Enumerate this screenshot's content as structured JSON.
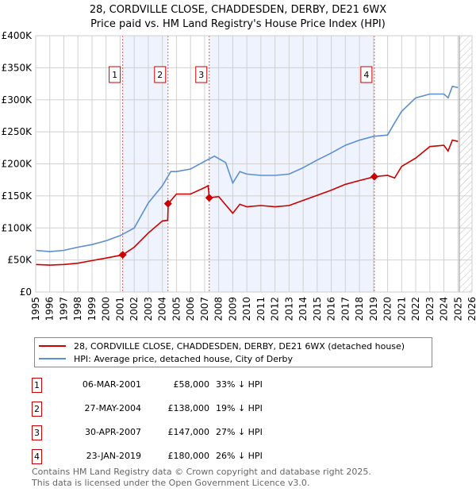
{
  "title": [
    "28, CORDVILLE CLOSE, CHADDESDEN, DERBY, DE21 6WX",
    "Price paid vs. HM Land Registry's House Price Index (HPI)"
  ],
  "chart_data": {
    "type": "line",
    "title": "28, CORDVILLE CLOSE, CHADDESDEN, DERBY, DE21 6WX - Price paid vs. HM Land Registry's House Price Index (HPI)",
    "xlim": [
      1995,
      2026
    ],
    "ylim": [
      0,
      400000
    ],
    "xticks": [
      "1995",
      "1996",
      "1997",
      "1998",
      "1999",
      "2000",
      "2001",
      "2002",
      "2003",
      "2004",
      "2005",
      "2006",
      "2007",
      "2008",
      "2009",
      "2010",
      "2011",
      "2012",
      "2013",
      "2014",
      "2015",
      "2016",
      "2017",
      "2018",
      "2019",
      "2020",
      "2021",
      "2022",
      "2023",
      "2024",
      "2025",
      "2026"
    ],
    "yticks": [
      {
        "v": 0,
        "label": "£0"
      },
      {
        "v": 50000,
        "label": "£50K"
      },
      {
        "v": 100000,
        "label": "£100K"
      },
      {
        "v": 150000,
        "label": "£150K"
      },
      {
        "v": 200000,
        "label": "£200K"
      },
      {
        "v": 250000,
        "label": "£250K"
      },
      {
        "v": 300000,
        "label": "£300K"
      },
      {
        "v": 350000,
        "label": "£350K"
      },
      {
        "v": 400000,
        "label": "£400K"
      }
    ],
    "grid": true,
    "forecast_start": 2025.1,
    "shaded_ranges": [
      [
        2001.18,
        2004.4
      ],
      [
        2007.33,
        2019.06
      ]
    ],
    "series": [
      {
        "name": "28, CORDVILLE CLOSE, CHADDESDEN, DERBY, DE21 6WX (detached house)",
        "color": "#cc0000",
        "x": [
          1995,
          1996,
          1997,
          1998,
          1999,
          2000,
          2001.18,
          2002,
          2003,
          2004,
          2004.38,
          2004.42,
          2005,
          2006,
          2007,
          2007.25,
          2007.33,
          2008,
          2009,
          2009.5,
          2010,
          2011,
          2012,
          2013,
          2014,
          2015,
          2016,
          2017,
          2018,
          2019.06,
          2020,
          2020.5,
          2021,
          2022,
          2023,
          2024,
          2024.3,
          2024.6,
          2025
        ],
        "y": [
          43000,
          42000,
          43000,
          45000,
          49000,
          53000,
          58000,
          70000,
          92000,
          111000,
          112000,
          138000,
          153000,
          153000,
          163000,
          166000,
          147000,
          149000,
          123000,
          137000,
          133000,
          135000,
          133000,
          135000,
          143000,
          151000,
          159000,
          168000,
          174000,
          180000,
          182000,
          178000,
          196000,
          209000,
          227000,
          229000,
          220000,
          237000,
          235000
        ]
      },
      {
        "name": "HPI: Average price, detached house, City of Derby",
        "color": "#5b8fd0",
        "x": [
          1995,
          1996,
          1997,
          1998,
          1999,
          2000,
          2001,
          2002,
          2003,
          2004,
          2004.6,
          2005,
          2006,
          2007,
          2007.7,
          2008.5,
          2009,
          2009.5,
          2010,
          2011,
          2012,
          2013,
          2014,
          2015,
          2016,
          2017,
          2018,
          2019,
          2020,
          2020.5,
          2021,
          2022,
          2023,
          2024,
          2024.3,
          2024.6,
          2025
        ],
        "y": [
          65000,
          63000,
          65000,
          70000,
          74000,
          80000,
          88000,
          100000,
          139000,
          166000,
          188000,
          188000,
          192000,
          204000,
          212000,
          202000,
          170000,
          188000,
          184000,
          182000,
          182000,
          184000,
          194000,
          206000,
          217000,
          229000,
          237000,
          243000,
          245000,
          264000,
          282000,
          303000,
          309000,
          309000,
          303000,
          321000,
          319000
        ]
      }
    ],
    "sales": [
      {
        "id": "1",
        "x": 2001.18,
        "y": 58000
      },
      {
        "id": "2",
        "x": 2004.4,
        "y": 138000
      },
      {
        "id": "3",
        "x": 2007.33,
        "y": 147000
      },
      {
        "id": "4",
        "x": 2019.06,
        "y": 180000
      }
    ]
  },
  "legend": [
    {
      "label": "28, CORDVILLE CLOSE, CHADDESDEN, DERBY, DE21 6WX (detached house)",
      "color": "#cc0000"
    },
    {
      "label": "HPI: Average price, detached house, City of Derby",
      "color": "#5b8fd0"
    }
  ],
  "transactions": [
    {
      "num": "1",
      "date": "06-MAR-2001",
      "price": "£58,000",
      "hpi": "33% ↓ HPI"
    },
    {
      "num": "2",
      "date": "27-MAY-2004",
      "price": "£138,000",
      "hpi": "19% ↓ HPI"
    },
    {
      "num": "3",
      "date": "30-APR-2007",
      "price": "£147,000",
      "hpi": "27% ↓ HPI"
    },
    {
      "num": "4",
      "date": "23-JAN-2019",
      "price": "£180,000",
      "hpi": "26% ↓ HPI"
    }
  ],
  "footer": [
    "Contains HM Land Registry data © Crown copyright and database right 2025.",
    "This data is licensed under the Open Government Licence v3.0."
  ]
}
